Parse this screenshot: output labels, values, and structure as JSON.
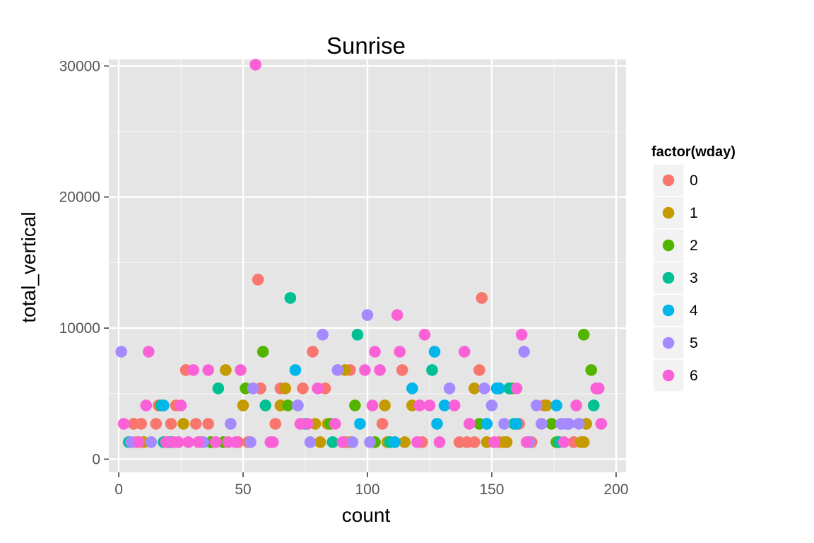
{
  "chart_data": {
    "type": "scatter",
    "title": "Sunrise",
    "xlabel": "count",
    "ylabel": "total_vertical",
    "xlim": [
      -4,
      204
    ],
    "ylim": [
      -1000,
      30500
    ],
    "x_ticks": [
      0,
      50,
      100,
      150,
      200
    ],
    "y_ticks": [
      0,
      10000,
      20000,
      30000
    ],
    "x_tick_labels": [
      "0",
      "50",
      "100",
      "150",
      "200"
    ],
    "y_tick_labels": [
      "0",
      "10000",
      "20000",
      "30000"
    ],
    "grid": true,
    "background": "#e5e5e5",
    "legend": {
      "title": "factor(wday)",
      "position": "right",
      "entries": [
        "0",
        "1",
        "2",
        "3",
        "4",
        "5",
        "6"
      ]
    },
    "colors": {
      "0": "#F8766D",
      "1": "#C49A00",
      "2": "#53B400",
      "3": "#00C094",
      "4": "#00B6EB",
      "5": "#A58AFF",
      "6": "#FB61D7"
    },
    "series": [
      {
        "name": "0",
        "points": [
          [
            6,
            2700
          ],
          [
            7,
            1300
          ],
          [
            9,
            2700
          ],
          [
            15,
            2700
          ],
          [
            16,
            4100
          ],
          [
            20,
            1300
          ],
          [
            21,
            2700
          ],
          [
            23,
            4100
          ],
          [
            27,
            6800
          ],
          [
            31,
            2700
          ],
          [
            33,
            1300
          ],
          [
            36,
            2700
          ],
          [
            48,
            1300
          ],
          [
            52,
            1300
          ],
          [
            56,
            13700
          ],
          [
            57,
            5400
          ],
          [
            63,
            2700
          ],
          [
            65,
            5400
          ],
          [
            74,
            5400
          ],
          [
            78,
            8200
          ],
          [
            83,
            5400
          ],
          [
            91,
            1300
          ],
          [
            93,
            6800
          ],
          [
            106,
            2700
          ],
          [
            111,
            1300
          ],
          [
            114,
            6800
          ],
          [
            122,
            1300
          ],
          [
            137,
            1300
          ],
          [
            140,
            1300
          ],
          [
            143,
            1300
          ],
          [
            145,
            6800
          ],
          [
            146,
            12300
          ],
          [
            153,
            1300
          ],
          [
            161,
            2700
          ],
          [
            166,
            1300
          ],
          [
            171,
            4100
          ],
          [
            178,
            2700
          ],
          [
            183,
            1300
          ]
        ]
      },
      {
        "name": "1",
        "points": [
          [
            10,
            1300
          ],
          [
            26,
            2700
          ],
          [
            37,
            1300
          ],
          [
            43,
            6800
          ],
          [
            50,
            4100
          ],
          [
            65,
            4100
          ],
          [
            67,
            5400
          ],
          [
            79,
            2700
          ],
          [
            81,
            1300
          ],
          [
            84,
            2700
          ],
          [
            91,
            6800
          ],
          [
            93,
            1300
          ],
          [
            107,
            4100
          ],
          [
            108,
            1300
          ],
          [
            115,
            1300
          ],
          [
            118,
            4100
          ],
          [
            143,
            5400
          ],
          [
            148,
            1300
          ],
          [
            155,
            1300
          ],
          [
            156,
            1300
          ],
          [
            172,
            4100
          ],
          [
            186,
            1300
          ],
          [
            187,
            1300
          ],
          [
            188,
            2700
          ]
        ]
      },
      {
        "name": "2",
        "points": [
          [
            37,
            1300
          ],
          [
            42,
            1300
          ],
          [
            51,
            5400
          ],
          [
            58,
            8200
          ],
          [
            68,
            4100
          ],
          [
            85,
            2700
          ],
          [
            95,
            4100
          ],
          [
            103,
            1300
          ],
          [
            145,
            2700
          ],
          [
            158,
            5400
          ],
          [
            174,
            2700
          ],
          [
            176,
            1300
          ],
          [
            187,
            9500
          ],
          [
            190,
            6800
          ]
        ]
      },
      {
        "name": "3",
        "points": [
          [
            4,
            1300
          ],
          [
            17,
            4100
          ],
          [
            18,
            1300
          ],
          [
            40,
            5400
          ],
          [
            59,
            4100
          ],
          [
            69,
            12300
          ],
          [
            86,
            1300
          ],
          [
            96,
            9500
          ],
          [
            109,
            1300
          ],
          [
            126,
            6800
          ],
          [
            157,
            5400
          ],
          [
            159,
            2700
          ],
          [
            177,
            1300
          ],
          [
            191,
            4100
          ]
        ]
      },
      {
        "name": "4",
        "points": [
          [
            18,
            4100
          ],
          [
            21,
            1300
          ],
          [
            71,
            6800
          ],
          [
            75,
            2700
          ],
          [
            97,
            2700
          ],
          [
            111,
            1300
          ],
          [
            118,
            5400
          ],
          [
            127,
            8200
          ],
          [
            128,
            2700
          ],
          [
            131,
            4100
          ],
          [
            148,
            2700
          ],
          [
            152,
            5400
          ],
          [
            153,
            5400
          ],
          [
            160,
            2700
          ],
          [
            176,
            4100
          ]
        ]
      },
      {
        "name": "5",
        "points": [
          [
            1,
            8200
          ],
          [
            5,
            1300
          ],
          [
            13,
            1300
          ],
          [
            34,
            1300
          ],
          [
            45,
            2700
          ],
          [
            53,
            1300
          ],
          [
            54,
            5400
          ],
          [
            72,
            4100
          ],
          [
            77,
            1300
          ],
          [
            82,
            9500
          ],
          [
            88,
            6800
          ],
          [
            94,
            1300
          ],
          [
            100,
            11000
          ],
          [
            101,
            1300
          ],
          [
            133,
            5400
          ],
          [
            147,
            5400
          ],
          [
            150,
            4100
          ],
          [
            155,
            2700
          ],
          [
            163,
            8200
          ],
          [
            165,
            1300
          ],
          [
            168,
            4100
          ],
          [
            170,
            2700
          ],
          [
            178,
            2700
          ],
          [
            180,
            2700
          ],
          [
            181,
            2700
          ],
          [
            185,
            2700
          ]
        ]
      },
      {
        "name": "6",
        "points": [
          [
            2,
            2700
          ],
          [
            8,
            1300
          ],
          [
            11,
            4100
          ],
          [
            12,
            8200
          ],
          [
            19,
            1300
          ],
          [
            22,
            1300
          ],
          [
            24,
            1300
          ],
          [
            25,
            4100
          ],
          [
            28,
            1300
          ],
          [
            30,
            6800
          ],
          [
            32,
            1300
          ],
          [
            36,
            6800
          ],
          [
            39,
            1300
          ],
          [
            44,
            1300
          ],
          [
            47,
            1300
          ],
          [
            49,
            6800
          ],
          [
            55,
            30100
          ],
          [
            61,
            1300
          ],
          [
            62,
            1300
          ],
          [
            73,
            2700
          ],
          [
            76,
            2700
          ],
          [
            80,
            5400
          ],
          [
            87,
            2700
          ],
          [
            90,
            1300
          ],
          [
            99,
            6800
          ],
          [
            102,
            4100
          ],
          [
            103,
            8200
          ],
          [
            105,
            6800
          ],
          [
            112,
            11000
          ],
          [
            113,
            8200
          ],
          [
            120,
            1300
          ],
          [
            121,
            4100
          ],
          [
            123,
            9500
          ],
          [
            125,
            4100
          ],
          [
            129,
            1300
          ],
          [
            135,
            4100
          ],
          [
            139,
            8200
          ],
          [
            141,
            2700
          ],
          [
            151,
            1300
          ],
          [
            160,
            5400
          ],
          [
            162,
            9500
          ],
          [
            164,
            1300
          ],
          [
            179,
            1300
          ],
          [
            184,
            4100
          ],
          [
            192,
            5400
          ],
          [
            193,
            5400
          ],
          [
            194,
            2700
          ]
        ]
      }
    ]
  }
}
